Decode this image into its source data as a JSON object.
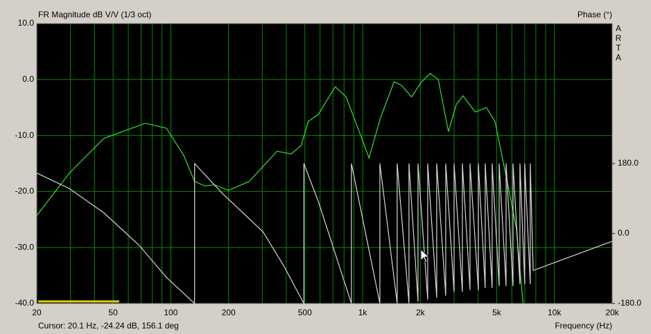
{
  "chart_data": {
    "type": "line",
    "title": "FR Magnitude dB V/V (1/3 oct)",
    "y2_label": "Phase (°)",
    "side_text": [
      "A",
      "R",
      "T",
      "A"
    ],
    "cursor_text": "Cursor: 20.1 Hz, -24.24 dB, 156.1 deg",
    "x_label": "Frequency (Hz)",
    "xscale": "log",
    "grid": true,
    "grid_color": "#008c00",
    "xlim": [
      20,
      20000
    ],
    "xticks": [
      20,
      50,
      100,
      200,
      500,
      {
        "value": 1000,
        "label": "1k"
      },
      {
        "value": 2000,
        "label": "2k"
      },
      {
        "value": 5000,
        "label": "5k"
      },
      {
        "value": 10000,
        "label": "10k"
      },
      {
        "value": 20000,
        "label": "20k"
      }
    ],
    "xminor": [
      30,
      40,
      60,
      70,
      80,
      90,
      300,
      400,
      600,
      700,
      800,
      900,
      3000,
      4000,
      6000,
      7000,
      8000,
      9000
    ],
    "ylim": [
      -40,
      10
    ],
    "yticks": [
      {
        "value": 10,
        "label": "10.0"
      },
      {
        "value": 0,
        "label": "0.0"
      },
      {
        "value": -10,
        "label": "-10.0"
      },
      {
        "value": -20,
        "label": "-20.0"
      },
      {
        "value": -30,
        "label": "-30.0"
      },
      {
        "value": -40,
        "label": "-40.0"
      }
    ],
    "y2lim": [
      -180,
      540
    ],
    "y2ticks": [
      {
        "value": 180,
        "label": "180.0"
      },
      {
        "value": 0,
        "label": "0.0"
      },
      {
        "value": -180,
        "label": "-180.0"
      }
    ],
    "series": [
      {
        "name": "FR Magnitude",
        "color": "#33e633",
        "x": [
          20,
          29.6,
          44.8,
          73.8,
          95,
          117,
          133,
          150,
          169,
          200,
          256,
          303,
          358,
          424,
          478,
          520,
          588,
          720,
          820,
          975,
          1080,
          1240,
          1460,
          1590,
          1800,
          2030,
          2250,
          2480,
          2800,
          3080,
          3340,
          3860,
          4420,
          4900,
          5750,
          6330,
          6860
        ],
        "values": [
          -24.3,
          -16.7,
          -10.5,
          -7.8,
          -8.7,
          -13.6,
          -18.2,
          -19,
          -18.8,
          -19.8,
          -18.2,
          -15.5,
          -12.8,
          -13.3,
          -11.8,
          -7.5,
          -6.2,
          -1.3,
          -3.1,
          -9.9,
          -14,
          -6.8,
          -0.4,
          -1,
          -3.1,
          -0.4,
          1.1,
          0,
          -9.3,
          -4.4,
          -2.9,
          -5.8,
          -5,
          -7.5,
          -19.2,
          -26.6,
          -40
        ]
      },
      {
        "name": "Phase",
        "color": "#d8d8d8",
        "axis": "y2",
        "x": [
          20,
          29.6,
          44.8,
          68,
          95,
          133,
          133,
          185,
          303,
          389,
          494,
          494,
          588,
          874,
          874,
          1230,
          1230,
          1514,
          1514,
          1744,
          1744,
          1944,
          1944,
          2184,
          2184,
          2434,
          2434,
          2712,
          2712,
          2998,
          2998,
          3312,
          3312,
          3630,
          3630,
          4012,
          4012,
          4356,
          4356,
          4734,
          4734,
          5150,
          5150,
          5598,
          5598,
          6082,
          6082,
          6608,
          6608,
          7000,
          7000,
          7480,
          7480,
          7750,
          20000
        ],
        "values": [
          155.6,
          115.6,
          53,
          -29,
          -113,
          -180,
          180,
          104,
          4,
          -84,
          -180,
          180,
          82,
          -180,
          180,
          -180,
          180,
          -180,
          180,
          -180,
          180,
          -175,
          180,
          -170,
          180,
          -165,
          180,
          -160,
          180,
          -150,
          180,
          -150,
          180,
          -145,
          180,
          -145,
          180,
          -140,
          180,
          -140,
          180,
          -135,
          180,
          -135,
          180,
          -135,
          180,
          -130,
          180,
          -130,
          180,
          -130,
          180,
          -95,
          -20
        ]
      }
    ]
  }
}
